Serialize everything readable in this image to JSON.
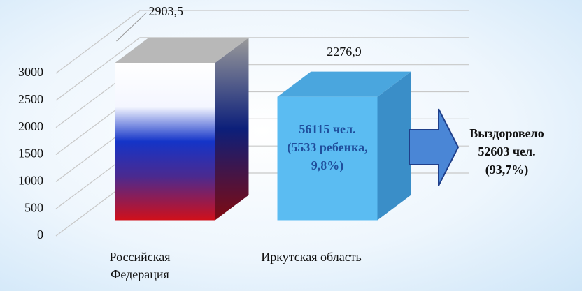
{
  "chart_data": {
    "type": "bar3d",
    "categories": [
      "Российская Федерация",
      "Иркутская область"
    ],
    "values": [
      2903.5,
      2276.9
    ],
    "value_labels": [
      "2903,5",
      "2276,9"
    ],
    "colors": [
      "#1434c8",
      "#5bbcf2"
    ],
    "ylim": [
      0,
      3000
    ],
    "yticks": [
      0,
      500,
      1000,
      1500,
      2000,
      2500,
      3000
    ],
    "grid": true,
    "annotations": [
      "56115 чел. (5533 ребенка, 9,8%)",
      "Выздоровело 52603 чел. (93,7%)"
    ]
  }
}
